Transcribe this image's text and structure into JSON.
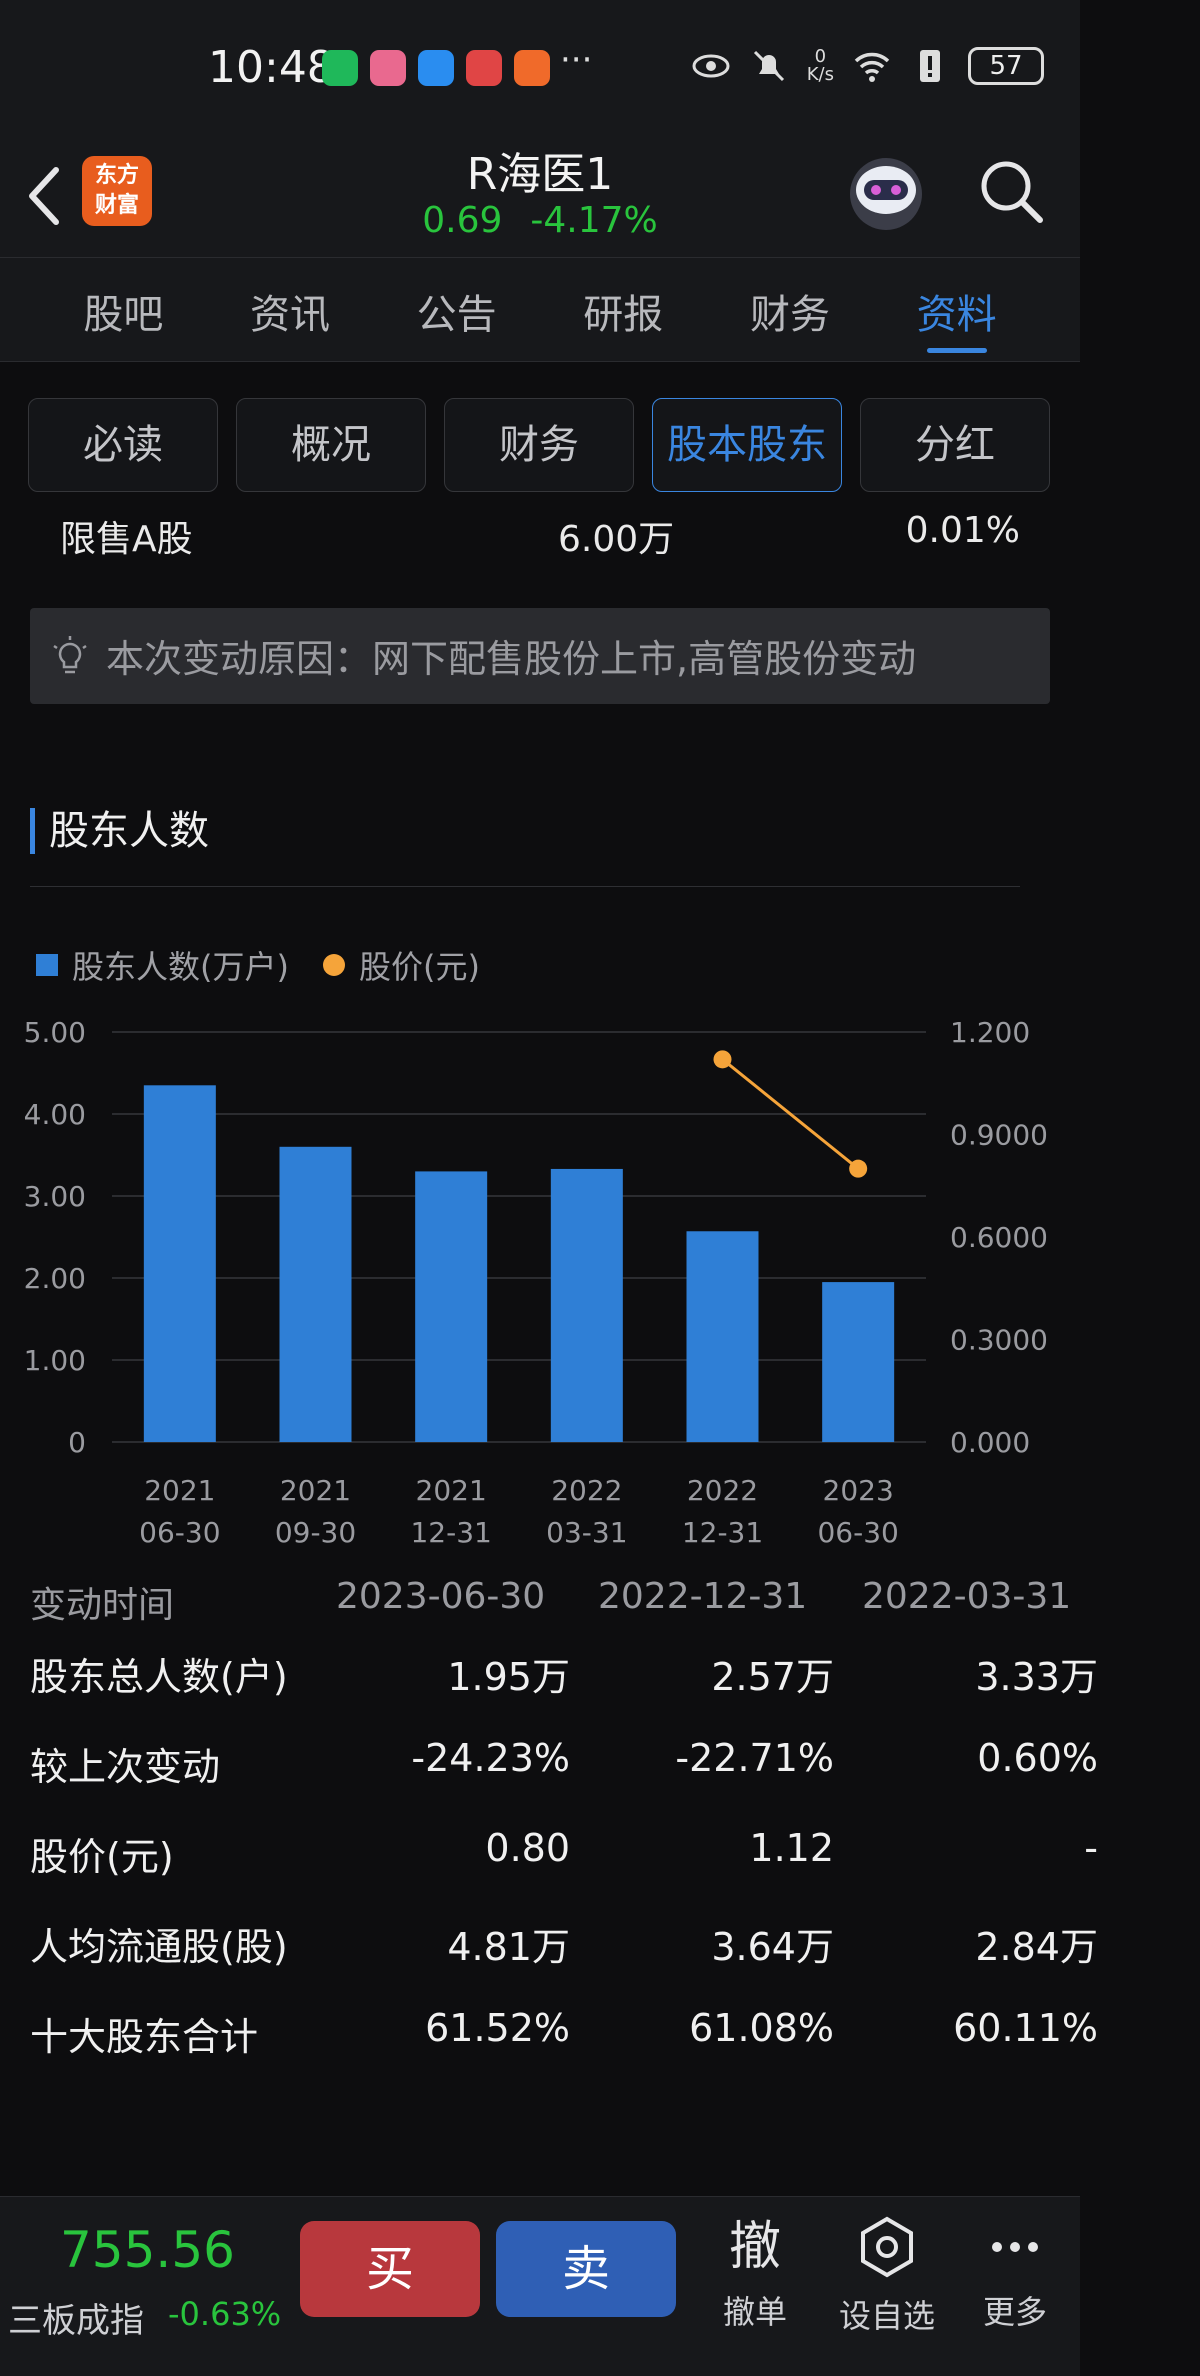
{
  "status_bar": {
    "time": "10:48",
    "more": "···",
    "net_speed_value": "0",
    "net_speed_unit": "K/s",
    "battery": "57"
  },
  "header": {
    "logo_line1": "东方",
    "logo_line2": "财富",
    "stock_name": "R海医1",
    "price": "0.69",
    "change_pct": "-4.17%"
  },
  "tabs": [
    "股吧",
    "资讯",
    "公告",
    "研报",
    "财务",
    "资料"
  ],
  "active_tab": "资料",
  "subtabs": [
    "必读",
    "概况",
    "财务",
    "股本股东",
    "分红"
  ],
  "active_subtab": "股本股东",
  "restricted_row": {
    "label": "限售A股",
    "amount": "6.00万",
    "pct": "0.01%"
  },
  "reason": "本次变动原因：网下配售股份上市,高管股份变动",
  "section_title": "股东人数",
  "chart_data": {
    "type": "bar",
    "legend": [
      {
        "name": "股东人数(万户)",
        "color": "#2f7fd6"
      },
      {
        "name": "股价(元)",
        "color": "#f5a43a"
      }
    ],
    "categories": [
      [
        "2021",
        "06-30"
      ],
      [
        "2021",
        "09-30"
      ],
      [
        "2021",
        "12-31"
      ],
      [
        "2022",
        "03-31"
      ],
      [
        "2022",
        "12-31"
      ],
      [
        "2023",
        "06-30"
      ]
    ],
    "series": [
      {
        "name": "股东人数(万户)",
        "axis": "left",
        "type": "bar",
        "values": [
          4.35,
          3.6,
          3.3,
          3.33,
          2.57,
          1.95
        ]
      },
      {
        "name": "股价(元)",
        "axis": "right",
        "type": "line",
        "values": [
          null,
          null,
          null,
          null,
          1.12,
          0.8
        ]
      }
    ],
    "left_ticks": [
      "5.00",
      "4.00",
      "3.00",
      "2.00",
      "1.00",
      "0"
    ],
    "left_ylim": [
      0,
      5
    ],
    "right_ticks": [
      "1.200",
      "0.9000",
      "0.6000",
      "0.3000",
      "0.000"
    ],
    "right_ylim": [
      0,
      1.2
    ],
    "grid": true
  },
  "stats": {
    "header": {
      "label": "变动时间",
      "cols": [
        "2023-06-30",
        "2022-12-31",
        "2022-03-31"
      ]
    },
    "rows": [
      {
        "label": "股东总人数(户)",
        "cols": [
          "1.95万",
          "2.57万",
          "3.33万"
        ]
      },
      {
        "label": "较上次变动",
        "cols": [
          "-24.23%",
          "-22.71%",
          "0.60%"
        ]
      },
      {
        "label": "股价(元)",
        "cols": [
          "0.80",
          "1.12",
          "-"
        ]
      },
      {
        "label": "人均流通股(股)",
        "cols": [
          "4.81万",
          "3.64万",
          "2.84万"
        ]
      },
      {
        "label": "十大股东合计",
        "cols": [
          "61.52%",
          "61.08%",
          "60.11%"
        ]
      }
    ]
  },
  "bottom_bar": {
    "index_value": "755.56",
    "index_name": "三板成指",
    "index_pct": "-0.63%",
    "buy": "买",
    "sell": "卖",
    "cancel_glyph": "撤",
    "cancel_label": "撤单",
    "watch_label": "设自选",
    "more_label": "更多"
  },
  "colors": {
    "accent": "#3a86e0",
    "down": "#29c43d",
    "bar": "#2f7fd6",
    "line": "#f5a43a",
    "buy": "#b8383d",
    "sell": "#2f5fb5"
  }
}
